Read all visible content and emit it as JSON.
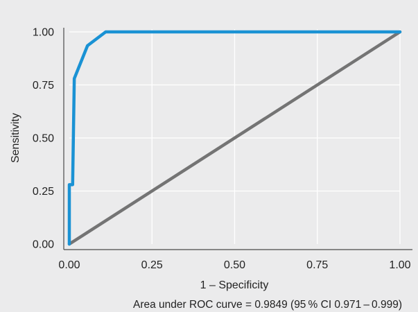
{
  "chart_data": {
    "type": "line",
    "title": "",
    "xlabel": "1 – Specificity",
    "ylabel": "Sensitivity",
    "caption": "Area under ROC curve = 0.9849 (95 % CI 0.971 – 0.999)",
    "xlim": [
      0,
      1
    ],
    "ylim": [
      0,
      1
    ],
    "xticks": [
      0,
      0.25,
      0.5,
      0.75,
      1
    ],
    "yticks": [
      0,
      0.25,
      0.5,
      0.75,
      1
    ],
    "xtick_labels": [
      "0.00",
      "0.25",
      "0.50",
      "0.75",
      "1.00"
    ],
    "ytick_labels": [
      "0.00",
      "0.25",
      "0.50",
      "0.75",
      "1.00"
    ],
    "grid": true,
    "legend": "none",
    "series": [
      {
        "color": "#1a92d4",
        "points": [
          [
            0.0,
            0.0
          ],
          [
            0.0,
            0.28
          ],
          [
            0.01,
            0.28
          ],
          [
            0.015,
            0.78
          ],
          [
            0.055,
            0.935
          ],
          [
            0.11,
            1.0
          ],
          [
            1.0,
            1.0
          ]
        ]
      },
      {
        "color": "#747474",
        "points": [
          [
            0.0,
            0.0
          ],
          [
            1.0,
            1.0
          ]
        ]
      }
    ]
  }
}
